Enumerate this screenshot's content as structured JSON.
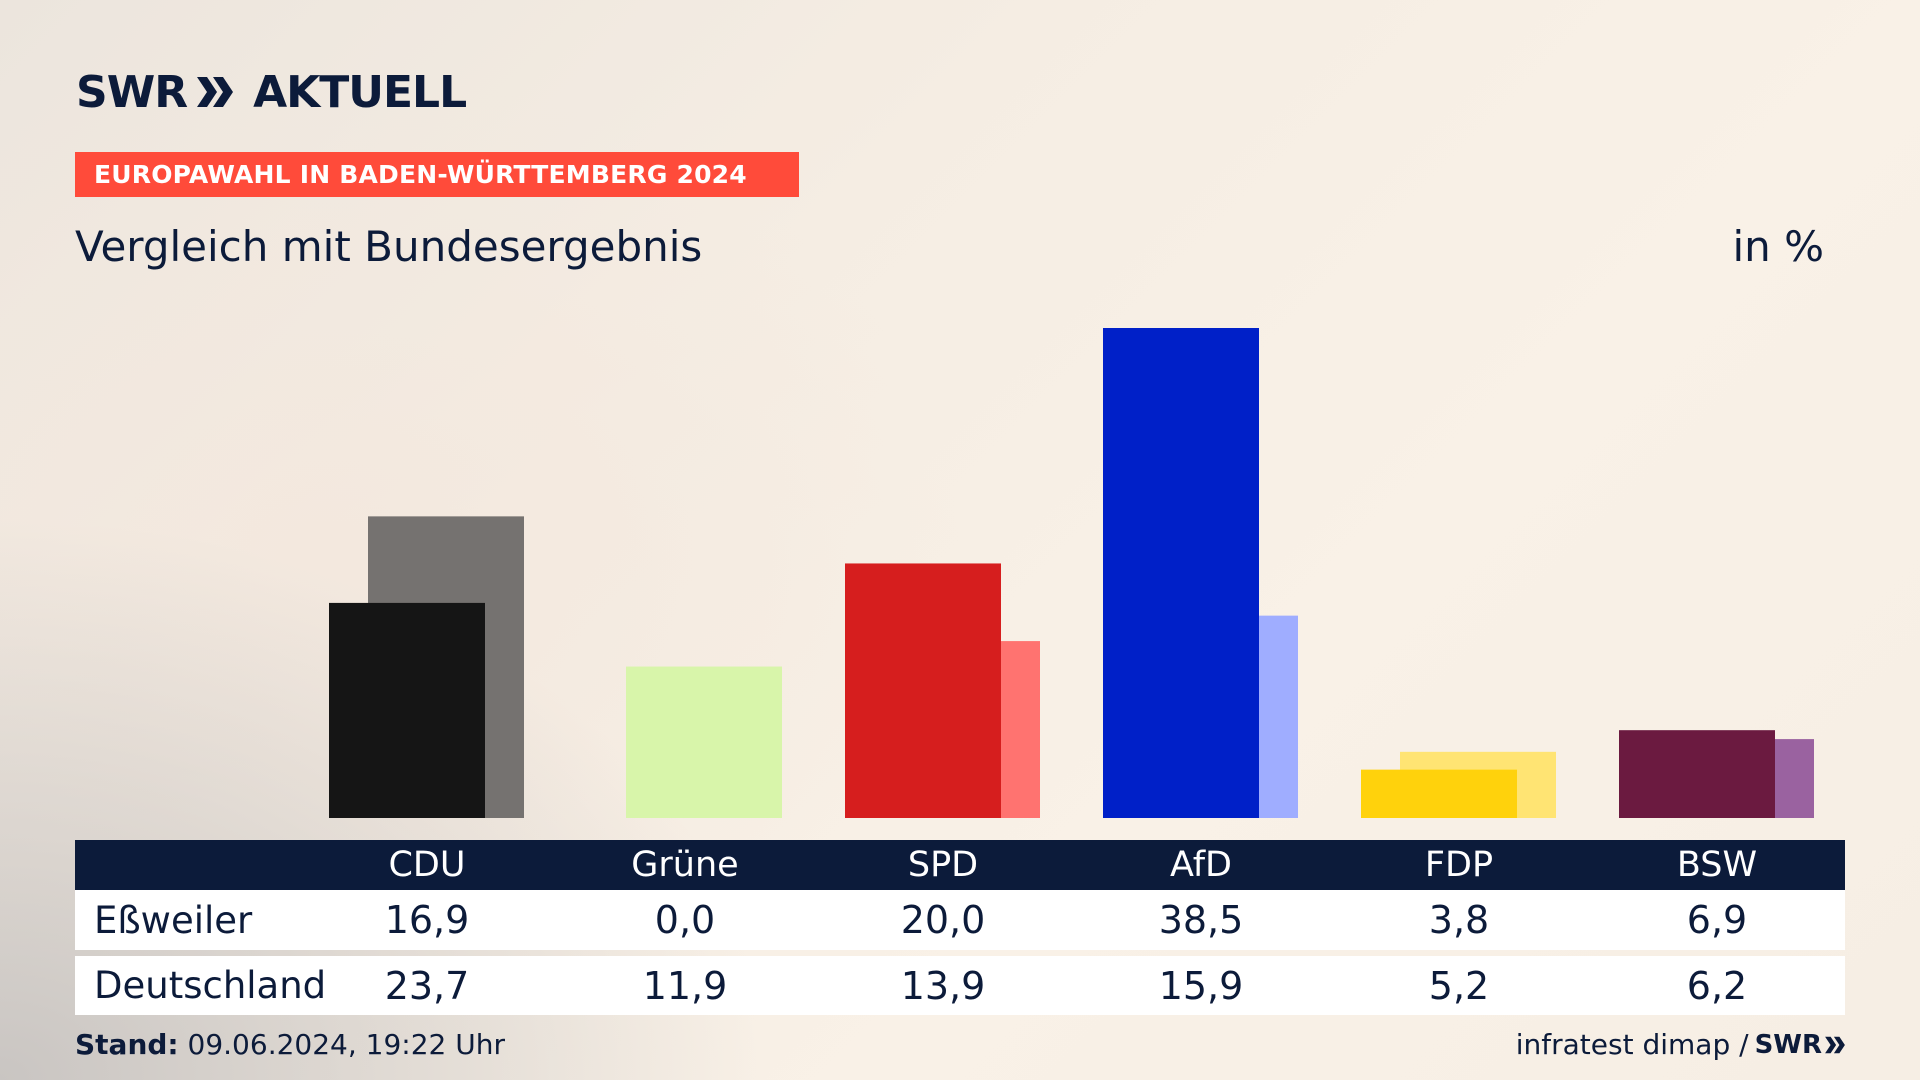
{
  "header": {
    "brand": "SWR",
    "brand_suffix": "AKTUELL",
    "banner": "EUROPAWAHL IN BADEN-WÜRTTEMBERG 2024",
    "subtitle": "Vergleich mit Bundesergebnis",
    "unit": "in %"
  },
  "table": {
    "rows": [
      {
        "label": "Eßweiler",
        "values": [
          "16,9",
          "0,0",
          "20,0",
          "38,5",
          "3,8",
          "6,9"
        ]
      },
      {
        "label": "Deutschland",
        "values": [
          "23,7",
          "11,9",
          "13,9",
          "15,9",
          "5,2",
          "6,2"
        ]
      }
    ]
  },
  "footer": {
    "stand_label": "Stand:",
    "stand_value": "09.06.2024, 19:22 Uhr",
    "source": "infratest dimap /",
    "logo": "SWR"
  },
  "colors": {
    "navy": "#0c1b3a",
    "banner": "#ff4b3a"
  },
  "chart_data": {
    "type": "bar",
    "categories": [
      "CDU",
      "Grüne",
      "SPD",
      "AfD",
      "FDP",
      "BSW"
    ],
    "series": [
      {
        "name": "Eßweiler",
        "values": [
          16.9,
          0.0,
          20.0,
          38.5,
          3.8,
          6.9
        ],
        "colors": [
          "#151515",
          "#2f8f2f",
          "#d61e1e",
          "#0020c8",
          "#ffd20c",
          "#6b1a40"
        ]
      },
      {
        "name": "Deutschland",
        "values": [
          23.7,
          11.9,
          13.9,
          15.9,
          5.2,
          6.2
        ],
        "colors": [
          "#757270",
          "#d8f5aa",
          "#ff7370",
          "#9fadff",
          "#ffe473",
          "#9a62a0"
        ]
      }
    ],
    "ylim": [
      0,
      38.5
    ]
  }
}
